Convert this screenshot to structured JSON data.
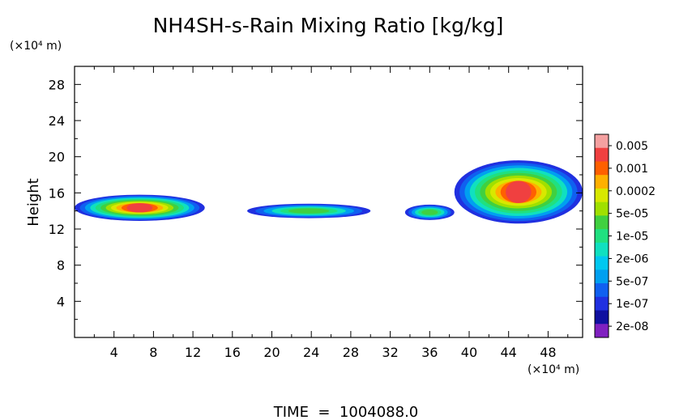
{
  "chart_data": {
    "type": "heatmap",
    "title": "NH4SH-s-Rain Mixing Ratio [kg/kg]",
    "ylabel": "Height",
    "y_unit": "(×10⁴ m)",
    "x_unit": "(×10⁴ m)",
    "footer": "TIME  =  1004088.0",
    "xlim": [
      0,
      51.5
    ],
    "ylim": [
      0,
      30
    ],
    "x_ticks": [
      4,
      8,
      12,
      16,
      20,
      24,
      28,
      32,
      36,
      40,
      44,
      48
    ],
    "y_ticks": [
      4,
      8,
      12,
      16,
      20,
      24,
      28
    ],
    "grid": false,
    "legend_position": "right",
    "colorbar": {
      "labels": [
        "0.005",
        "0.001",
        "0.0002",
        "5e-05",
        "1e-05",
        "2e-06",
        "5e-07",
        "1e-07",
        "2e-08"
      ],
      "colors": [
        "#f4a0a0",
        "#f04040",
        "#ff6000",
        "#ffb000",
        "#d8e800",
        "#a0e000",
        "#40d040",
        "#20e080",
        "#10e0c0",
        "#00c8f0",
        "#00a0f0",
        "#1060f0",
        "#2030e0",
        "#1010a0",
        "#8020c0"
      ]
    },
    "regions": [
      {
        "x": [
          0,
          13.2
        ],
        "y": [
          12.9,
          15.8
        ],
        "peak": "high"
      },
      {
        "x": [
          17.5,
          30
        ],
        "y": [
          13.2,
          14.8
        ],
        "peak": "low"
      },
      {
        "x": [
          33.5,
          38.5
        ],
        "y": [
          13.0,
          14.7
        ],
        "peak": "low"
      },
      {
        "x": [
          38.5,
          51.5
        ],
        "y": [
          12.6,
          19.6
        ],
        "peak": "high"
      }
    ]
  }
}
